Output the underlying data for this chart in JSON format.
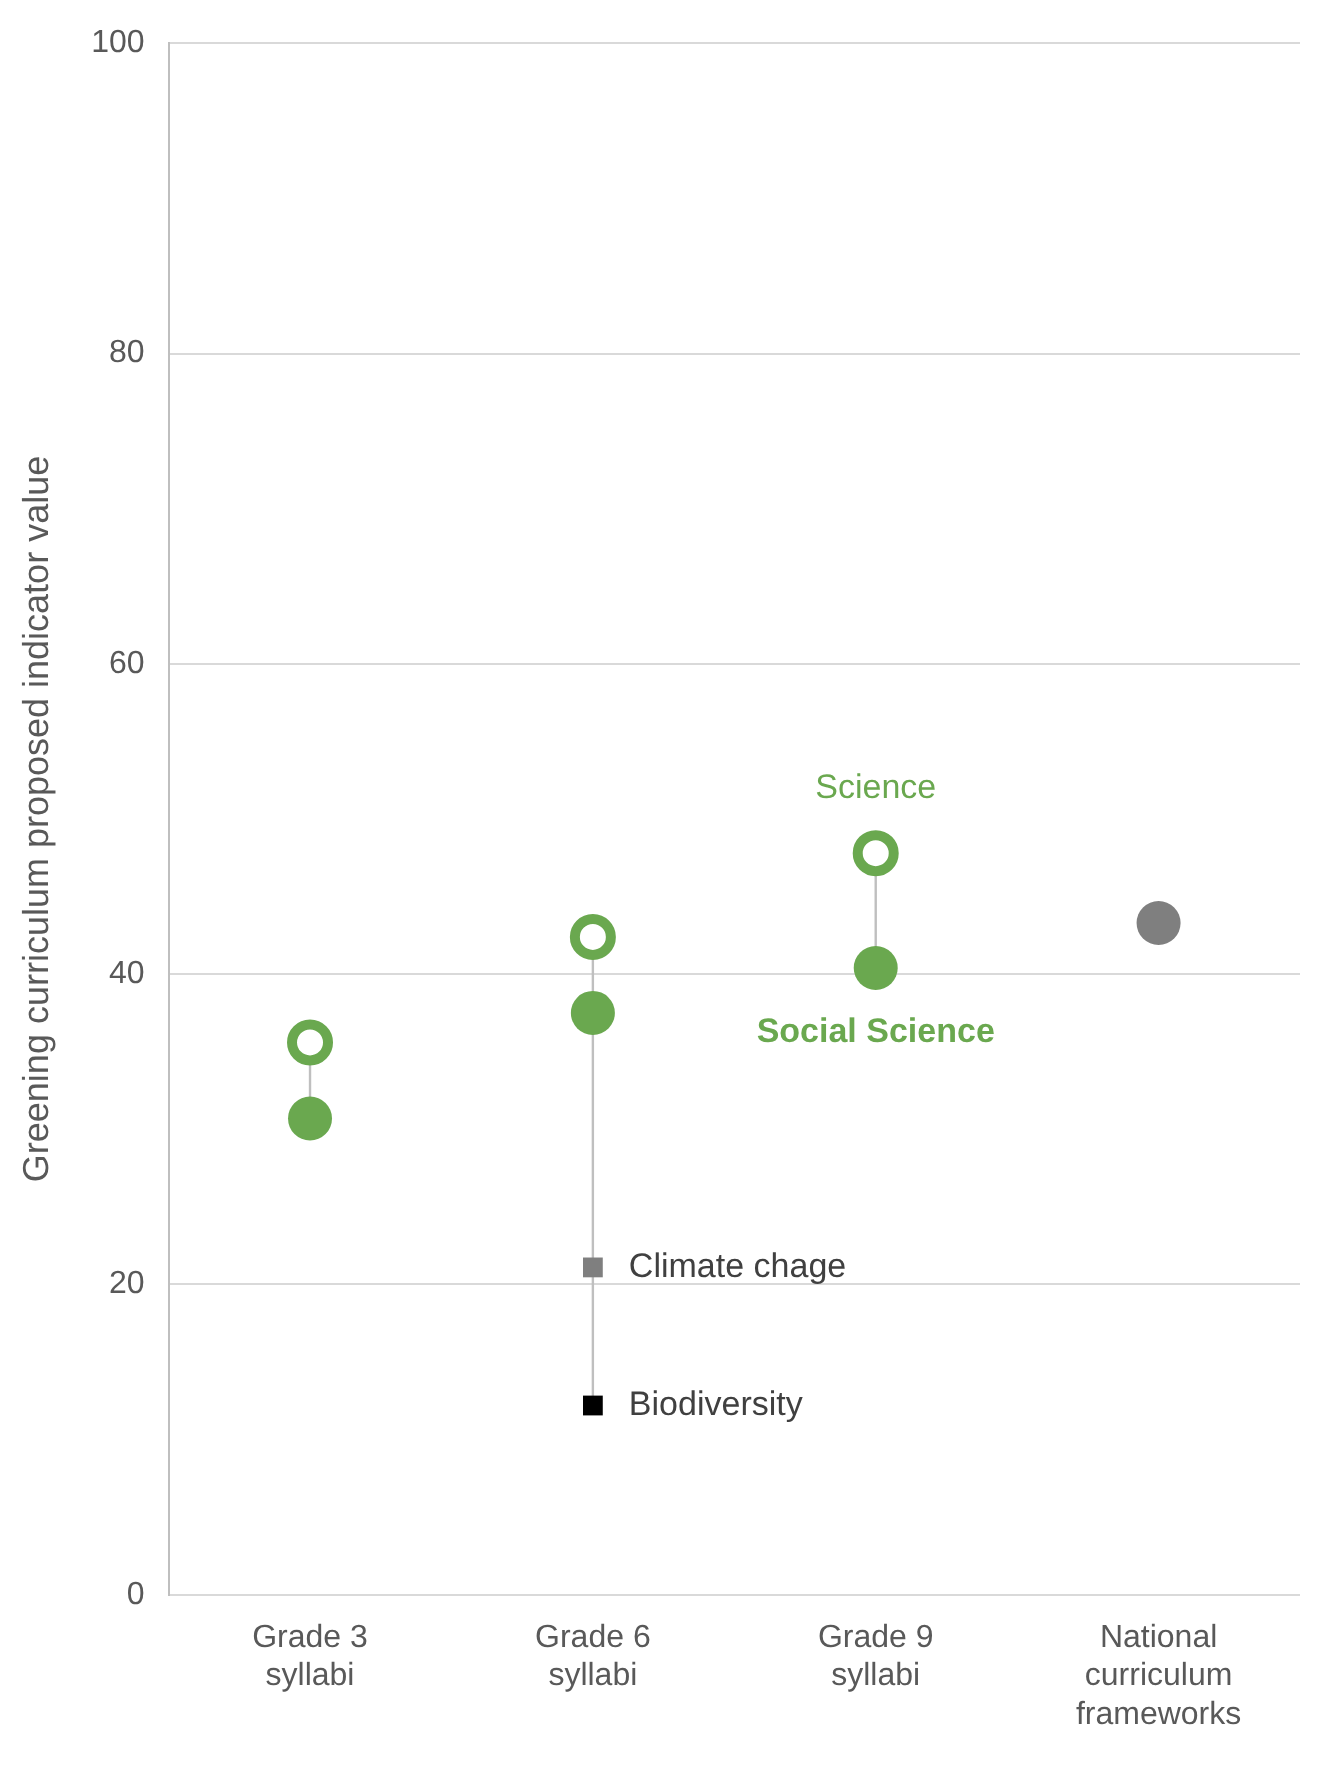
{
  "chart_data": {
    "type": "scatter",
    "ylabel": "Greening curriculum proposed indicator value",
    "categories": [
      "Grade 3\nsyllabi",
      "Grade 6\nsyllabi",
      "Grade 9\nsyllabi",
      "National\ncurriculum\nframeworks"
    ],
    "series": [
      {
        "name": "Science",
        "color": "#6aa84f",
        "marker": "circle",
        "values": [
          35.6,
          42.4,
          47.8,
          null
        ]
      },
      {
        "name": "Social Science",
        "color": "#6aa84f",
        "marker": "circle",
        "values": [
          30.7,
          37.5,
          40.4,
          null
        ]
      },
      {
        "name": "Climate chage",
        "color": "#7f7f7f",
        "marker": "square",
        "values": [
          null,
          21.1,
          null,
          null
        ]
      },
      {
        "name": "Biodiversity",
        "color": "#000000",
        "marker": "square",
        "values": [
          null,
          12.2,
          null,
          null
        ]
      },
      {
        "color": "#7f7f7f",
        "marker": "circle",
        "values": [
          null,
          null,
          null,
          43.3
        ]
      }
    ],
    "ylim": [
      0,
      100
    ],
    "yticks": [
      0,
      20,
      40,
      60,
      80,
      100
    ],
    "grid": "y",
    "legend": false
  }
}
